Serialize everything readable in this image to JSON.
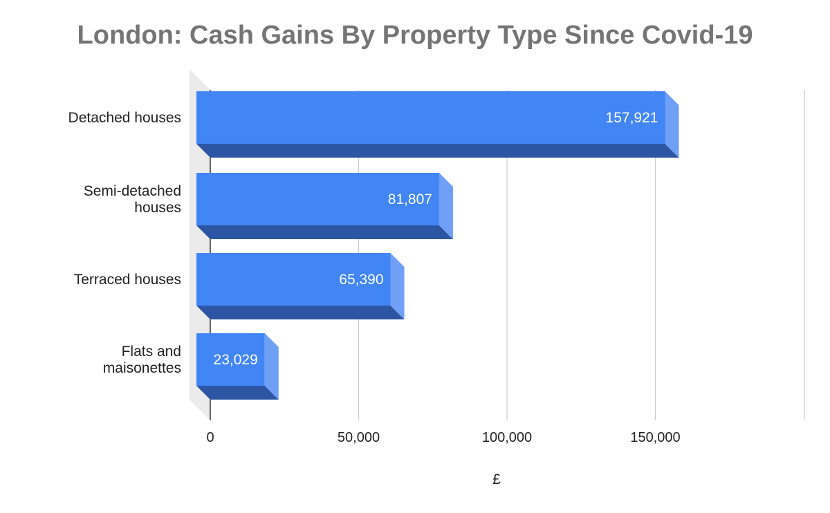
{
  "chart_data": {
    "type": "bar",
    "orientation": "horizontal",
    "style": "3d",
    "title": "London: Cash Gains By Property Type Since Covid-19",
    "xlabel": "£",
    "ylabel": "",
    "categories": [
      [
        "Detached houses"
      ],
      [
        "Semi-detached",
        "houses"
      ],
      [
        "Terraced houses"
      ],
      [
        "Flats and",
        "maisonettes"
      ]
    ],
    "values": [
      157921,
      81807,
      65390,
      23029
    ],
    "data_labels": [
      "157,921",
      "81,807",
      "65,390",
      "23,029"
    ],
    "x_ticks": [
      0,
      50000,
      100000,
      150000
    ],
    "x_tick_labels": [
      "0",
      "50,000",
      "100,000",
      "150,000"
    ],
    "xlim": [
      0,
      200000
    ],
    "grid": true,
    "legend": "none",
    "colors": {
      "bar_front": "#4285f4",
      "bar_bottom": "#2c55a3",
      "bar_side": "#6fa0f6",
      "grid": "#cccccc",
      "axis": "#333333",
      "wall": "#ebebeb",
      "title": "#757575"
    }
  }
}
